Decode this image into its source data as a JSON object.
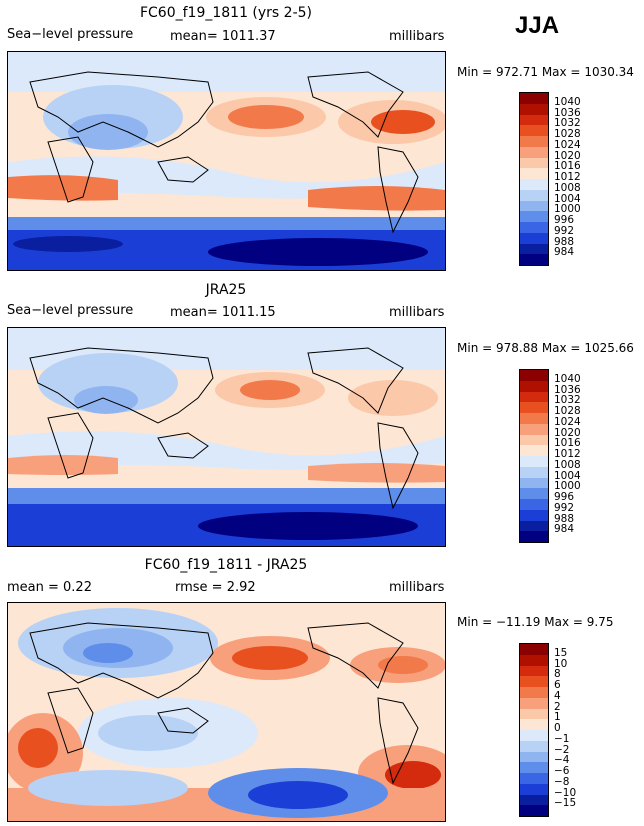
{
  "season": "JJA",
  "panels": [
    {
      "title": "FC60_f19_1811 (yrs 2-5)",
      "left_label": "Sea−level pressure",
      "center_label": "mean=  1011.37",
      "units": "millibars",
      "min_label": "Min = ",
      "min_value": "972.71",
      "max_label": "Max = ",
      "max_value": "1030.34",
      "colorbar_labels": [
        "1040",
        "1036",
        "1032",
        "1028",
        "1024",
        "1020",
        "1016",
        "1012",
        "1008",
        "1004",
        "1000",
        "996",
        "992",
        "988",
        "984"
      ],
      "colorbar_colors": [
        "#8b0000",
        "#b01000",
        "#d42a0e",
        "#e8501f",
        "#f27a4a",
        "#f8a07c",
        "#fbc8aa",
        "#fde6d3",
        "#dce9fb",
        "#b8d2f6",
        "#8fb4f0",
        "#5f8eea",
        "#3a66e6",
        "#1b3fd6",
        "#0a1ea0",
        "#000080"
      ]
    },
    {
      "title": "JRA25",
      "left_label": "Sea−level pressure",
      "center_label": "mean=  1011.15",
      "units": "millibars",
      "min_label": "Min = ",
      "min_value": "978.88",
      "max_label": "Max = ",
      "max_value": "1025.66",
      "colorbar_labels": [
        "1040",
        "1036",
        "1032",
        "1028",
        "1024",
        "1020",
        "1016",
        "1012",
        "1008",
        "1004",
        "1000",
        "996",
        "992",
        "988",
        "984"
      ],
      "colorbar_colors": [
        "#8b0000",
        "#b01000",
        "#d42a0e",
        "#e8501f",
        "#f27a4a",
        "#f8a07c",
        "#fbc8aa",
        "#fde6d3",
        "#dce9fb",
        "#b8d2f6",
        "#8fb4f0",
        "#5f8eea",
        "#3a66e6",
        "#1b3fd6",
        "#0a1ea0",
        "#000080"
      ]
    },
    {
      "title": "FC60_f19_1811 - JRA25",
      "left_label": "mean =     0.22",
      "center_label": "rmse =     2.92",
      "units": "millibars",
      "min_label": "Min = ",
      "min_value": "−11.19",
      "max_label": "Max = ",
      "max_value": "  9.75",
      "colorbar_labels": [
        "15",
        "10",
        "8",
        "6",
        "4",
        "2",
        "1",
        "0",
        "−1",
        "−2",
        "−4",
        "−6",
        "−8",
        "−10",
        "−15"
      ],
      "colorbar_colors": [
        "#8b0000",
        "#b01000",
        "#d42a0e",
        "#e8501f",
        "#f27a4a",
        "#f8a07c",
        "#fbc8aa",
        "#fde6d3",
        "#dce9fb",
        "#b8d2f6",
        "#8fb4f0",
        "#5f8eea",
        "#3a66e6",
        "#1b3fd6",
        "#0a1ea0",
        "#000080"
      ]
    }
  ]
}
